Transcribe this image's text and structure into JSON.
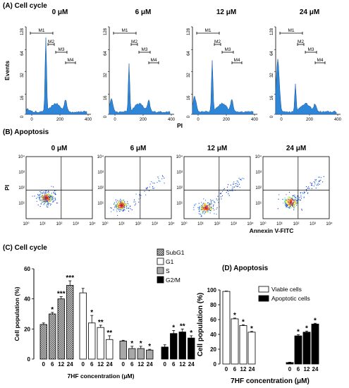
{
  "panels": {
    "a_title": "(A) Cell cycle",
    "b_title": "(B) Apoptosis",
    "c_title": "(C) Cell cycle",
    "d_title": "(D) Apoptosis"
  },
  "chart_data": [
    {
      "type": "area",
      "id": "A",
      "xlabel": "PI",
      "ylabel": "Events",
      "xticks": [
        "0",
        "200",
        "400"
      ],
      "yticks": [
        "0",
        "16",
        "32",
        "64",
        "128"
      ],
      "gates": [
        "M1",
        "M2",
        "M3",
        "M4"
      ],
      "conditions": [
        "0 μM",
        "6 μM",
        "12 μM",
        "24 μM"
      ],
      "color": "#2e86d9"
    },
    {
      "type": "scatter",
      "id": "B",
      "xlabel": "Annexin V-FITC",
      "ylabel": "PI",
      "xticks": [
        "10⁰",
        "10¹",
        "10²",
        "10³",
        "10⁴"
      ],
      "yticks": [
        "10⁰",
        "10¹",
        "10²",
        "10³",
        "10⁴"
      ],
      "conditions": [
        "0 μM",
        "6 μM",
        "12 μM",
        "24 μM"
      ]
    },
    {
      "type": "bar",
      "id": "C",
      "ylabel": "Cell population (%)",
      "xlabel": "7HF concentration (μM)",
      "ylim": [
        0,
        60
      ],
      "yticks": [
        "0",
        "20",
        "40",
        "60"
      ],
      "categories": [
        "0",
        "6",
        "12",
        "24"
      ],
      "series": [
        {
          "name": "SubG1",
          "values": [
            23,
            30,
            40,
            49
          ],
          "errors": [
            1,
            1,
            1.5,
            3
          ],
          "stars": [
            "",
            "*",
            "***",
            "***"
          ],
          "color": "#c8c8c8",
          "pattern": "checker"
        },
        {
          "name": "G1",
          "values": [
            44,
            24,
            21,
            13
          ],
          "errors": [
            3,
            5,
            1.5,
            2.5
          ],
          "stars": [
            "",
            "*",
            "**",
            "**"
          ],
          "color": "#ffffff"
        },
        {
          "name": "S",
          "values": [
            12,
            7,
            7,
            6
          ],
          "errors": [
            0.5,
            1.5,
            1.5,
            0.5
          ],
          "stars": [
            "",
            "*",
            "*",
            "*"
          ],
          "color": "#a8a8a8"
        },
        {
          "name": "G2/M",
          "values": [
            8,
            17,
            18,
            14
          ],
          "errors": [
            1.5,
            2,
            2,
            1.5
          ],
          "stars": [
            "",
            "*",
            "**",
            "*"
          ],
          "color": "#000000"
        }
      ]
    },
    {
      "type": "bar",
      "id": "D",
      "ylabel": "Cell population (%)",
      "xlabel": "7HF concentration (μM)",
      "ylim": [
        0,
        100
      ],
      "yticks": [
        "0",
        "20",
        "40",
        "60",
        "80",
        "100"
      ],
      "categories": [
        "0",
        "6",
        "12",
        "24"
      ],
      "series": [
        {
          "name": "Viable cells",
          "values": [
            98,
            61,
            52,
            43
          ],
          "errors": [
            0.5,
            1,
            1,
            1
          ],
          "stars": [
            "",
            "*",
            "*",
            "*"
          ],
          "color": "#ffffff"
        },
        {
          "name": "Apoptotic cells",
          "values": [
            2,
            38,
            43,
            54
          ],
          "errors": [
            0.5,
            1.5,
            1.5,
            1
          ],
          "stars": [
            "",
            "*",
            "*",
            "*"
          ],
          "color": "#000000"
        }
      ]
    }
  ]
}
